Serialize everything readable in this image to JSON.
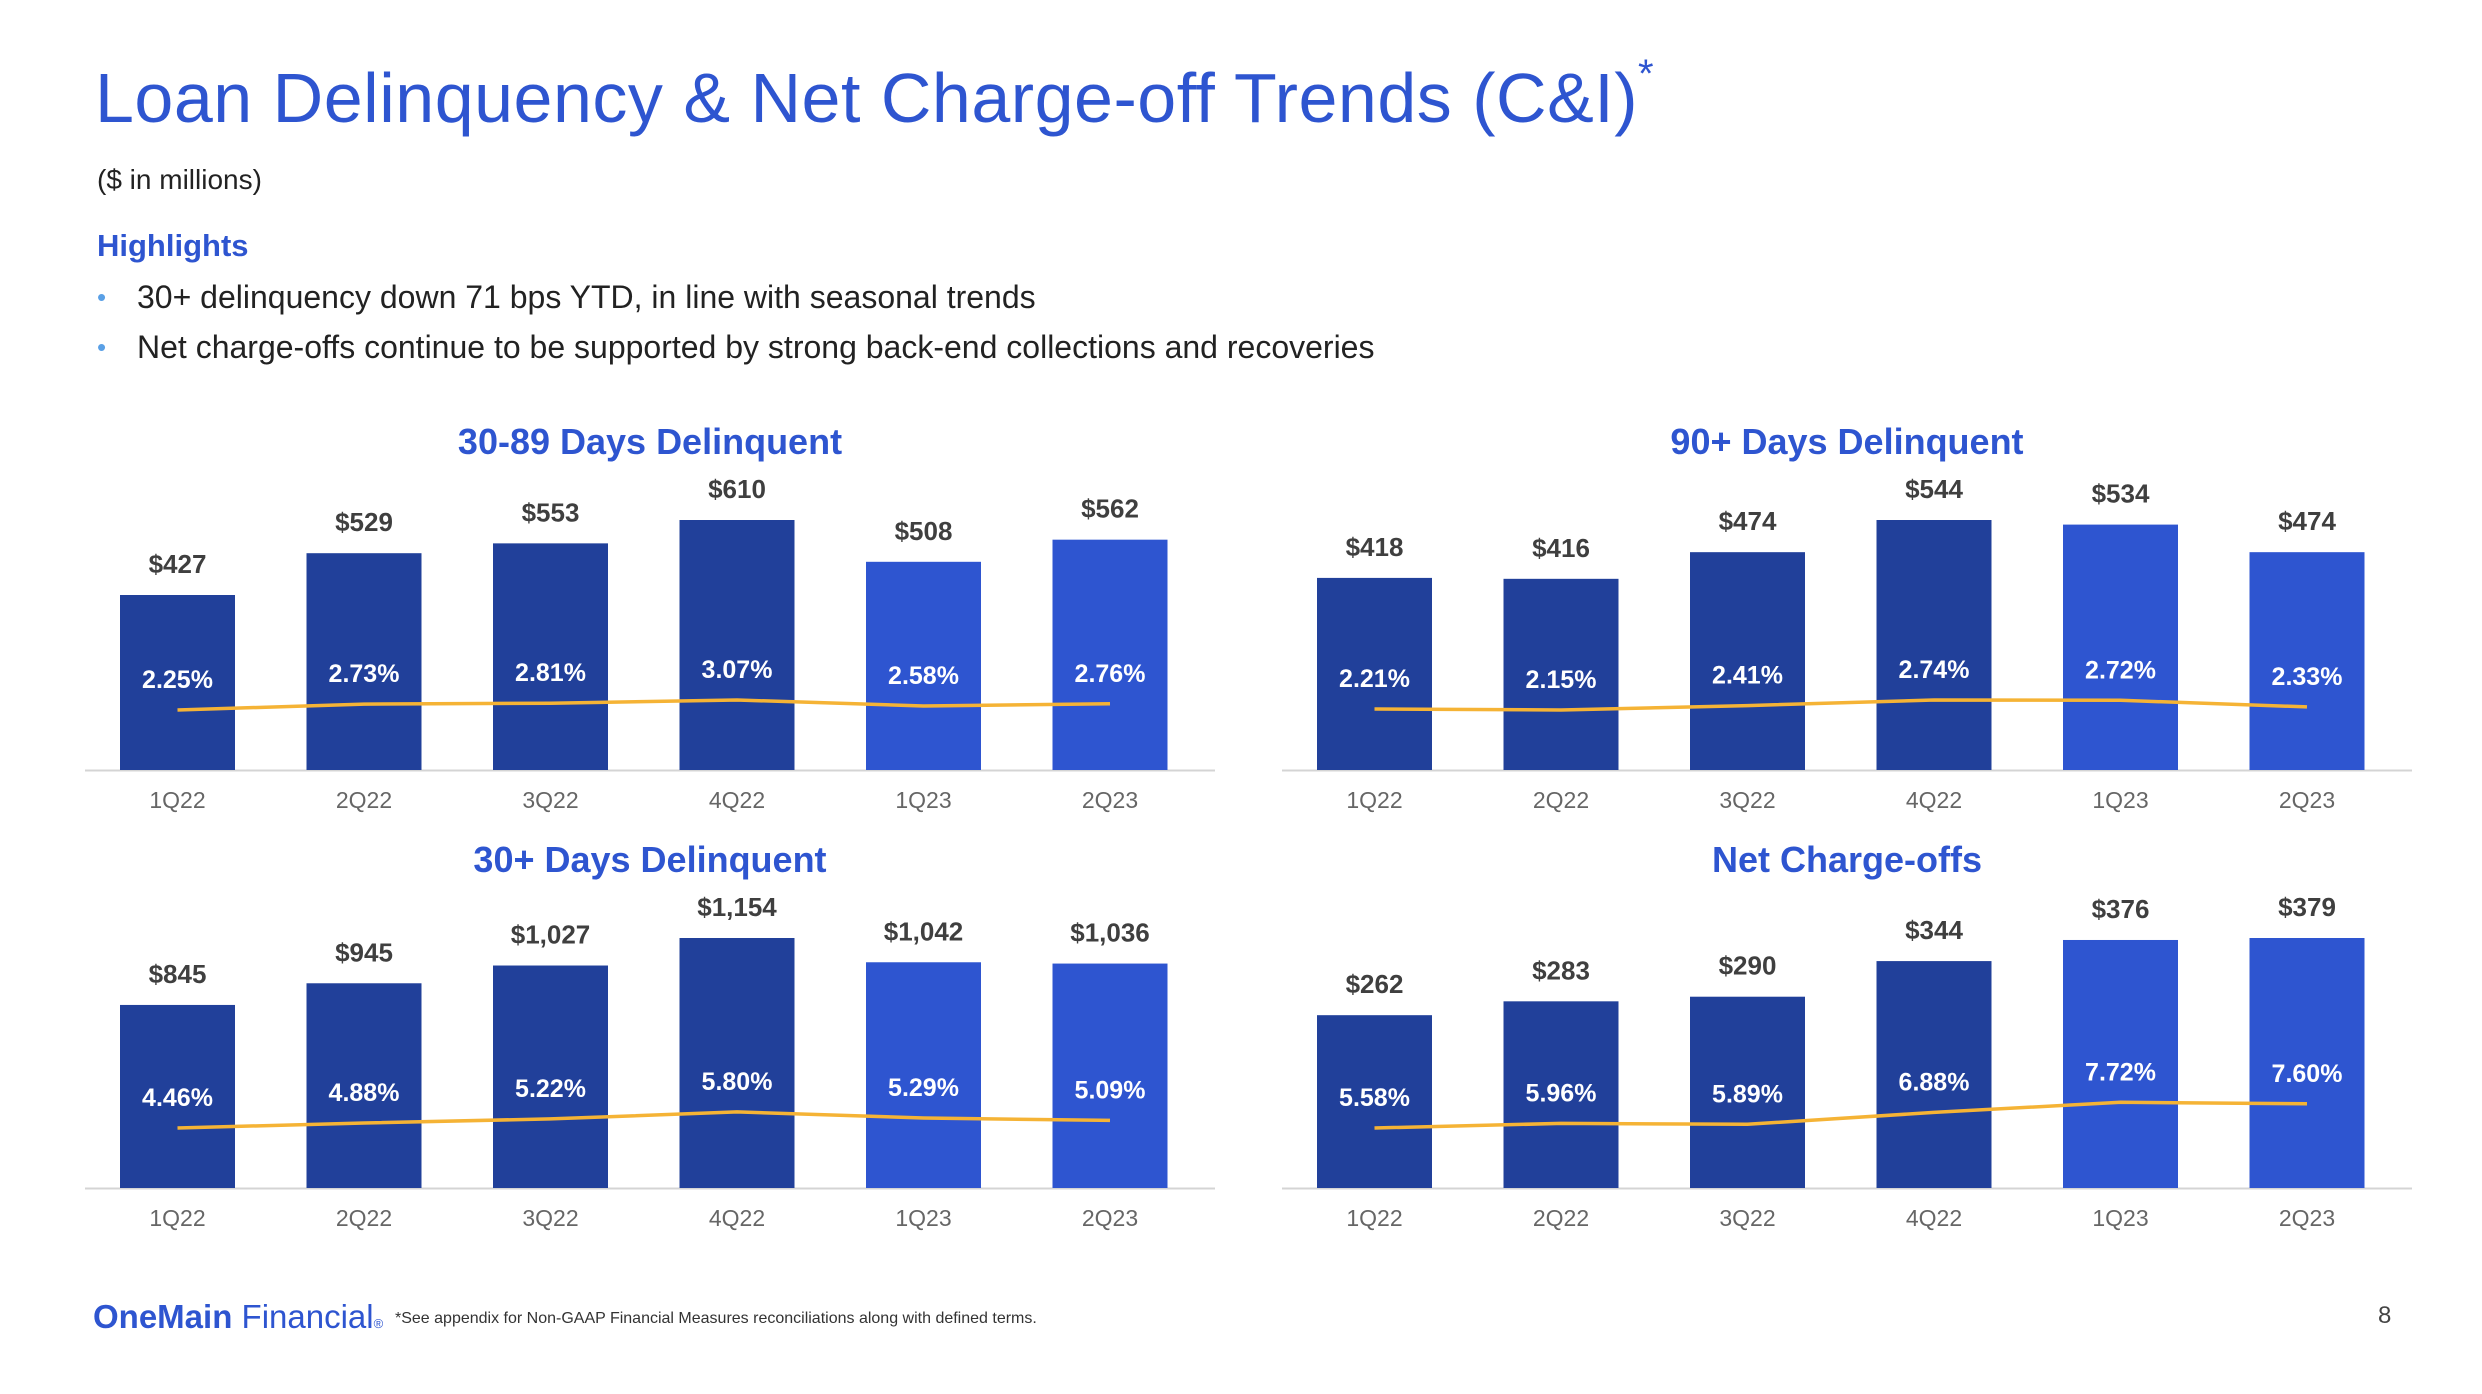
{
  "header": {
    "title": "Loan Delinquency & Net Charge-off Trends (C&I)",
    "title_mark": "*",
    "units": "($ in millions)"
  },
  "highlights": {
    "title": "Highlights",
    "bullet_glyph": "•",
    "items": [
      "30+ delinquency down 71 bps YTD, in line with seasonal trends",
      "Net charge-offs continue to be supported by strong back-end collections and recoveries"
    ]
  },
  "footer": {
    "logo_bold": "OneMain",
    "logo_light": "Financial",
    "logo_mark": "®",
    "footnote": "*See appendix for Non-GAAP Financial Measures reconciliations along with defined terms.",
    "page_number": "8"
  },
  "colors": {
    "bar_dark": "#21409a",
    "bar_light": "#2e55d0",
    "line": "#f5b335",
    "title_blue": "#2e55d0",
    "axis": "#d4d4d4",
    "value_label": "#3f3f3f",
    "tick_label": "#666666"
  },
  "chart_data": [
    {
      "type": "bar",
      "title": "30-89 Days Delinquent",
      "categories": [
        "1Q22",
        "2Q22",
        "3Q22",
        "4Q22",
        "1Q23",
        "2Q23"
      ],
      "values": [
        427,
        529,
        553,
        610,
        508,
        562
      ],
      "value_labels": [
        "$427",
        "$529",
        "$553",
        "$610",
        "$508",
        "$562"
      ],
      "line_values": [
        2.25,
        2.73,
        2.81,
        3.07,
        2.58,
        2.76
      ],
      "line_labels": [
        "2.25%",
        "2.73%",
        "2.81%",
        "3.07%",
        "2.58%",
        "2.76%"
      ],
      "highlight_from_index": 4
    },
    {
      "type": "bar",
      "title": "90+ Days Delinquent",
      "categories": [
        "1Q22",
        "2Q22",
        "3Q22",
        "4Q22",
        "1Q23",
        "2Q23"
      ],
      "values": [
        418,
        416,
        474,
        544,
        534,
        474
      ],
      "value_labels": [
        "$418",
        "$416",
        "$474",
        "$544",
        "$534",
        "$474"
      ],
      "line_values": [
        2.21,
        2.15,
        2.41,
        2.74,
        2.72,
        2.33
      ],
      "line_labels": [
        "2.21%",
        "2.15%",
        "2.41%",
        "2.74%",
        "2.72%",
        "2.33%"
      ],
      "highlight_from_index": 4
    },
    {
      "type": "bar",
      "title": "30+ Days Delinquent",
      "categories": [
        "1Q22",
        "2Q22",
        "3Q22",
        "4Q22",
        "1Q23",
        "2Q23"
      ],
      "values": [
        845,
        945,
        1027,
        1154,
        1042,
        1036
      ],
      "value_labels": [
        "$845",
        "$945",
        "$1,027",
        "$1,154",
        "$1,042",
        "$1,036"
      ],
      "line_values": [
        4.46,
        4.88,
        5.22,
        5.8,
        5.29,
        5.09
      ],
      "line_labels": [
        "4.46%",
        "4.88%",
        "5.22%",
        "5.80%",
        "5.29%",
        "5.09%"
      ],
      "highlight_from_index": 4
    },
    {
      "type": "bar",
      "title": "Net Charge-offs",
      "categories": [
        "1Q22",
        "2Q22",
        "3Q22",
        "4Q22",
        "1Q23",
        "2Q23"
      ],
      "values": [
        262,
        283,
        290,
        344,
        376,
        379
      ],
      "value_labels": [
        "$262",
        "$283",
        "$290",
        "$344",
        "$376",
        "$379"
      ],
      "line_values": [
        5.58,
        5.96,
        5.89,
        6.88,
        7.72,
        7.6
      ],
      "line_labels": [
        "5.58%",
        "5.96%",
        "5.89%",
        "6.88%",
        "7.72%",
        "7.60%"
      ],
      "highlight_from_index": 4
    }
  ]
}
